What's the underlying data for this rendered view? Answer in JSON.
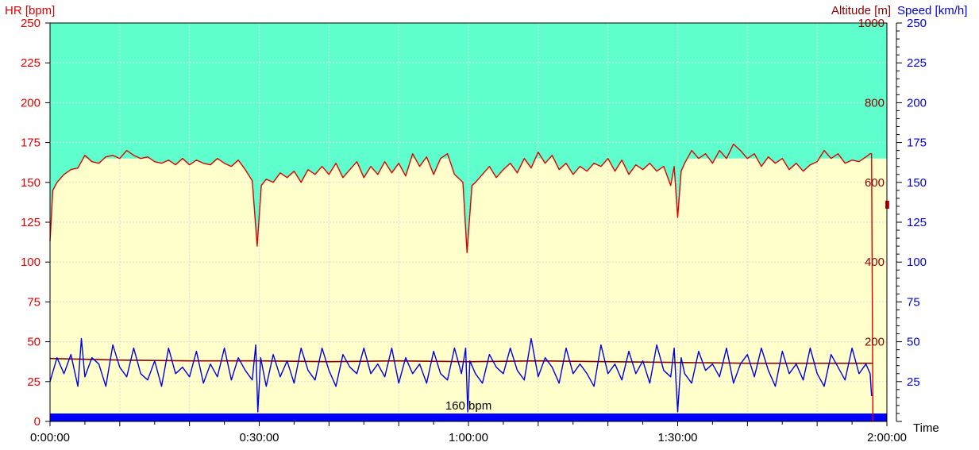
{
  "chart_data": {
    "type": "line",
    "title": "",
    "axes": {
      "hr": {
        "label": "HR [bpm]",
        "color": "#e00000",
        "min": 0,
        "max": 250,
        "ticks": [
          0,
          25,
          50,
          75,
          100,
          125,
          150,
          175,
          200,
          225,
          250
        ]
      },
      "altitude": {
        "label": "Altitude [m]",
        "color": "#8b0000",
        "min": 0,
        "max": 1000,
        "ticks": [
          200,
          400,
          600,
          800,
          1000
        ]
      },
      "speed": {
        "label": "Speed [km/h]",
        "color": "#0000e0",
        "min": 0,
        "max": 250,
        "ticks": [
          25,
          50,
          75,
          100,
          125,
          150,
          175,
          200,
          225,
          250
        ]
      },
      "time": {
        "label": "Time",
        "min": 0,
        "max": 120,
        "ticks": [
          "0:00:00",
          "0:30:00",
          "1:00:00",
          "1:30:00",
          "2:00:00"
        ]
      }
    },
    "zones": {
      "upper_color": "#5effcc",
      "lower_color": "#ffffcc",
      "upper_zone_hr_min": 165
    },
    "reference_line": {
      "label": "160 bpm"
    },
    "series": [
      {
        "name": "HR [bpm]",
        "axis": "hr",
        "color": "#e00000",
        "points": [
          [
            0,
            113
          ],
          [
            0.4,
            145
          ],
          [
            1,
            150
          ],
          [
            2,
            155
          ],
          [
            3,
            158
          ],
          [
            4,
            159
          ],
          [
            5,
            167
          ],
          [
            6,
            163
          ],
          [
            7,
            162
          ],
          [
            8,
            166
          ],
          [
            9,
            167
          ],
          [
            10,
            165
          ],
          [
            11,
            170
          ],
          [
            12,
            167
          ],
          [
            13,
            165
          ],
          [
            14,
            166
          ],
          [
            15,
            163
          ],
          [
            16,
            162
          ],
          [
            17,
            164
          ],
          [
            18,
            161
          ],
          [
            19,
            165
          ],
          [
            20,
            161
          ],
          [
            21,
            164
          ],
          [
            22,
            162
          ],
          [
            23,
            161
          ],
          [
            24,
            165
          ],
          [
            25,
            162
          ],
          [
            26,
            160
          ],
          [
            27,
            164
          ],
          [
            28,
            158
          ],
          [
            29,
            151
          ],
          [
            29.7,
            110
          ],
          [
            30.3,
            148
          ],
          [
            31,
            152
          ],
          [
            32,
            150
          ],
          [
            33,
            156
          ],
          [
            34,
            153
          ],
          [
            35,
            157
          ],
          [
            36,
            150
          ],
          [
            37,
            158
          ],
          [
            38,
            155
          ],
          [
            39,
            160
          ],
          [
            40,
            155
          ],
          [
            41,
            162
          ],
          [
            42,
            153
          ],
          [
            43,
            158
          ],
          [
            44,
            163
          ],
          [
            45,
            153
          ],
          [
            46,
            160
          ],
          [
            47,
            155
          ],
          [
            48,
            163
          ],
          [
            49,
            156
          ],
          [
            50,
            162
          ],
          [
            51,
            154
          ],
          [
            52,
            168
          ],
          [
            53,
            160
          ],
          [
            54,
            166
          ],
          [
            55,
            155
          ],
          [
            56,
            165
          ],
          [
            57,
            168
          ],
          [
            58,
            155
          ],
          [
            59.2,
            150
          ],
          [
            59.8,
            106
          ],
          [
            60.5,
            148
          ],
          [
            61,
            150
          ],
          [
            62,
            155
          ],
          [
            63,
            160
          ],
          [
            64,
            153
          ],
          [
            65,
            158
          ],
          [
            66,
            162
          ],
          [
            67,
            156
          ],
          [
            68,
            165
          ],
          [
            69,
            159
          ],
          [
            70,
            169
          ],
          [
            71,
            162
          ],
          [
            72,
            167
          ],
          [
            73,
            158
          ],
          [
            74,
            162
          ],
          [
            75,
            155
          ],
          [
            76,
            160
          ],
          [
            77,
            157
          ],
          [
            78,
            162
          ],
          [
            79,
            160
          ],
          [
            80,
            165
          ],
          [
            81,
            157
          ],
          [
            82,
            164
          ],
          [
            83,
            155
          ],
          [
            84,
            161
          ],
          [
            85,
            158
          ],
          [
            86,
            162
          ],
          [
            87,
            157
          ],
          [
            88,
            160
          ],
          [
            89,
            148
          ],
          [
            89.5,
            160
          ],
          [
            90,
            128
          ],
          [
            90.5,
            157
          ],
          [
            91,
            162
          ],
          [
            92,
            170
          ],
          [
            93,
            165
          ],
          [
            94,
            168
          ],
          [
            95,
            162
          ],
          [
            96,
            170
          ],
          [
            97,
            165
          ],
          [
            98,
            174
          ],
          [
            99,
            170
          ],
          [
            100,
            165
          ],
          [
            101,
            168
          ],
          [
            102,
            160
          ],
          [
            103,
            166
          ],
          [
            104,
            162
          ],
          [
            105,
            165
          ],
          [
            106,
            158
          ],
          [
            107,
            162
          ],
          [
            108,
            157
          ],
          [
            109,
            161
          ],
          [
            110,
            163
          ],
          [
            111,
            170
          ],
          [
            112,
            165
          ],
          [
            113,
            168
          ],
          [
            114,
            162
          ],
          [
            115,
            164
          ],
          [
            116,
            163
          ],
          [
            117,
            166
          ],
          [
            117.6,
            168
          ],
          [
            117.8,
            168
          ],
          [
            118,
            0
          ]
        ]
      },
      {
        "name": "Altitude [m]",
        "axis": "altitude",
        "color": "#8b0000",
        "points": [
          [
            0,
            158
          ],
          [
            10,
            154
          ],
          [
            20,
            152
          ],
          [
            30,
            152
          ],
          [
            40,
            150
          ],
          [
            50,
            152
          ],
          [
            60,
            150
          ],
          [
            70,
            152
          ],
          [
            80,
            150
          ],
          [
            90,
            148
          ],
          [
            100,
            146
          ],
          [
            110,
            146
          ],
          [
            118,
            146
          ]
        ]
      },
      {
        "name": "Speed [km/h]",
        "axis": "speed",
        "color": "#0000e0",
        "points": [
          [
            0,
            25
          ],
          [
            1,
            40
          ],
          [
            2,
            30
          ],
          [
            3,
            42
          ],
          [
            4,
            22
          ],
          [
            4.5,
            52
          ],
          [
            5,
            28
          ],
          [
            6,
            40
          ],
          [
            7,
            36
          ],
          [
            8,
            22
          ],
          [
            9,
            48
          ],
          [
            10,
            34
          ],
          [
            11,
            28
          ],
          [
            12,
            46
          ],
          [
            13,
            30
          ],
          [
            14,
            26
          ],
          [
            15,
            38
          ],
          [
            16,
            22
          ],
          [
            17,
            46
          ],
          [
            18,
            30
          ],
          [
            19,
            34
          ],
          [
            20,
            28
          ],
          [
            21,
            44
          ],
          [
            22,
            24
          ],
          [
            23,
            36
          ],
          [
            24,
            28
          ],
          [
            25,
            46
          ],
          [
            26,
            26
          ],
          [
            27,
            40
          ],
          [
            28,
            32
          ],
          [
            29,
            26
          ],
          [
            29.5,
            48
          ],
          [
            29.8,
            6
          ],
          [
            30.2,
            40
          ],
          [
            31,
            22
          ],
          [
            32,
            42
          ],
          [
            33,
            28
          ],
          [
            34,
            38
          ],
          [
            35,
            24
          ],
          [
            36,
            46
          ],
          [
            37,
            32
          ],
          [
            38,
            26
          ],
          [
            39,
            46
          ],
          [
            40,
            32
          ],
          [
            41,
            22
          ],
          [
            42,
            42
          ],
          [
            43,
            34
          ],
          [
            44,
            30
          ],
          [
            45,
            46
          ],
          [
            46,
            30
          ],
          [
            47,
            36
          ],
          [
            48,
            28
          ],
          [
            49,
            46
          ],
          [
            50,
            24
          ],
          [
            51,
            40
          ],
          [
            52,
            30
          ],
          [
            53,
            36
          ],
          [
            54,
            24
          ],
          [
            55,
            44
          ],
          [
            56,
            30
          ],
          [
            57,
            26
          ],
          [
            58,
            46
          ],
          [
            59,
            30
          ],
          [
            59.6,
            46
          ],
          [
            59.9,
            6
          ],
          [
            60.2,
            38
          ],
          [
            61,
            30
          ],
          [
            62,
            24
          ],
          [
            63,
            42
          ],
          [
            64,
            34
          ],
          [
            65,
            30
          ],
          [
            66,
            46
          ],
          [
            67,
            32
          ],
          [
            68,
            26
          ],
          [
            69,
            52
          ],
          [
            70,
            28
          ],
          [
            71,
            40
          ],
          [
            72,
            34
          ],
          [
            73,
            24
          ],
          [
            74,
            46
          ],
          [
            75,
            30
          ],
          [
            76,
            36
          ],
          [
            77,
            30
          ],
          [
            78,
            22
          ],
          [
            79,
            48
          ],
          [
            80,
            30
          ],
          [
            81,
            36
          ],
          [
            82,
            26
          ],
          [
            83,
            44
          ],
          [
            84,
            30
          ],
          [
            85,
            38
          ],
          [
            86,
            24
          ],
          [
            87,
            48
          ],
          [
            88,
            32
          ],
          [
            89,
            28
          ],
          [
            89.5,
            46
          ],
          [
            90,
            6
          ],
          [
            90.5,
            40
          ],
          [
            91,
            30
          ],
          [
            92,
            24
          ],
          [
            93,
            44
          ],
          [
            94,
            32
          ],
          [
            95,
            36
          ],
          [
            96,
            28
          ],
          [
            97,
            46
          ],
          [
            98,
            24
          ],
          [
            99,
            36
          ],
          [
            100,
            42
          ],
          [
            101,
            28
          ],
          [
            102,
            46
          ],
          [
            103,
            32
          ],
          [
            104,
            22
          ],
          [
            105,
            44
          ],
          [
            106,
            30
          ],
          [
            107,
            36
          ],
          [
            108,
            26
          ],
          [
            109,
            46
          ],
          [
            110,
            30
          ],
          [
            111,
            22
          ],
          [
            112,
            42
          ],
          [
            113,
            34
          ],
          [
            114,
            26
          ],
          [
            115,
            46
          ],
          [
            116,
            30
          ],
          [
            117,
            36
          ],
          [
            117.6,
            30
          ],
          [
            117.8,
            16
          ]
        ]
      }
    ]
  }
}
